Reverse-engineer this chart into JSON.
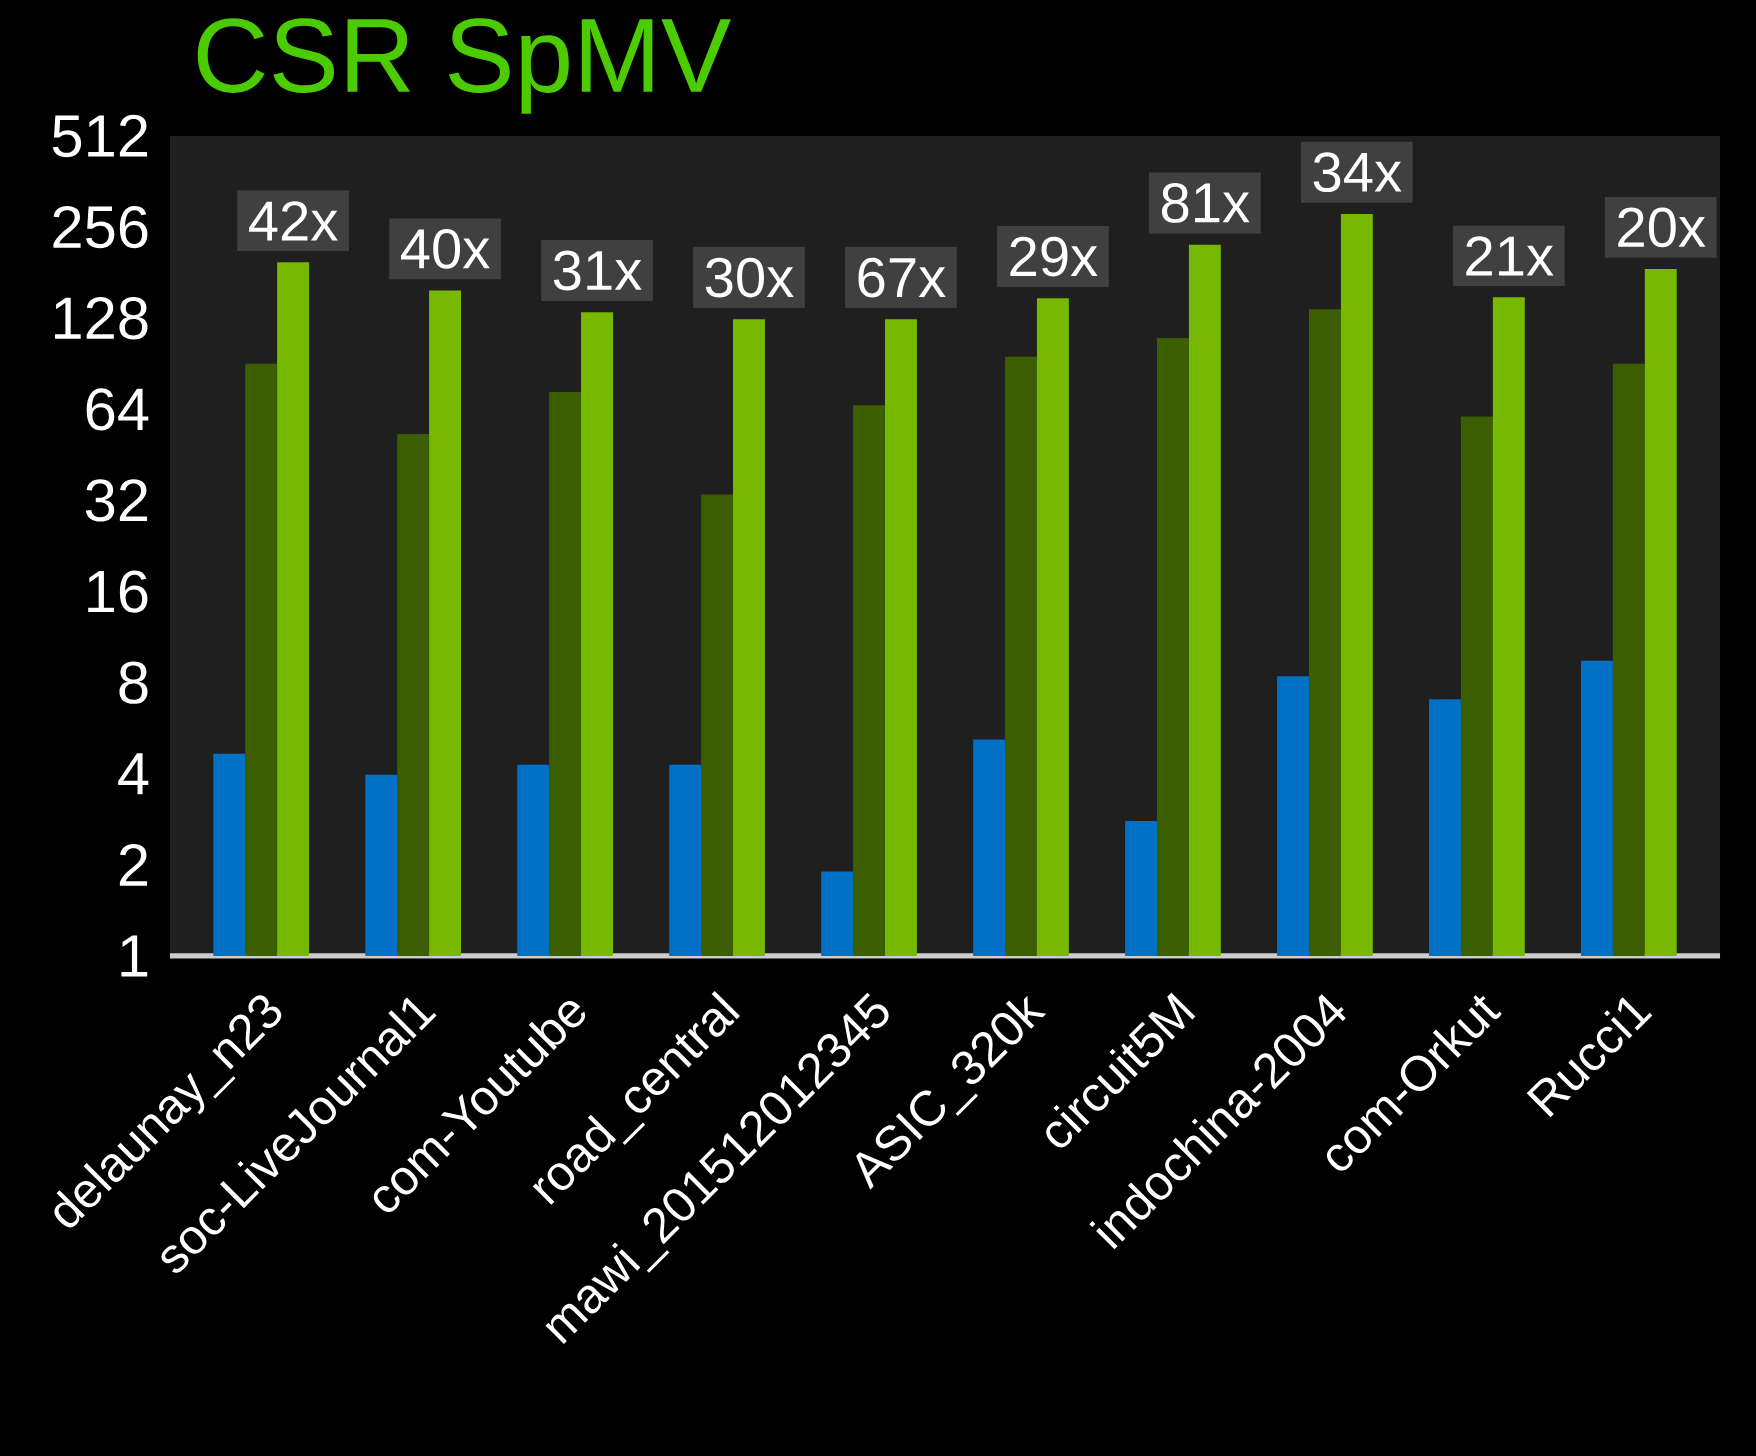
{
  "chart_data": {
    "type": "bar",
    "title": "CSR SpMV",
    "categories": [
      "delaunay_n23",
      "soc-LiveJournal1",
      "com-Youtube",
      "road_central",
      "mawi_201512012345",
      "ASIC_320k",
      "circuit5M",
      "indochina-2004",
      "com-Orkut",
      "Rucci1"
    ],
    "series": [
      {
        "color": "#0071c5",
        "values": [
          4.66,
          3.97,
          4.28,
          4.28,
          1.9,
          5.19,
          2.79,
          8.4,
          7.05,
          9.45
        ]
      },
      {
        "color": "#3b5e00",
        "values": [
          90.5,
          53,
          73,
          33.5,
          66,
          95.5,
          110,
          137,
          60.6,
          90.5
        ]
      },
      {
        "color": "#76b900",
        "values": [
          196,
          158,
          134,
          127,
          127,
          149,
          224,
          283,
          150,
          186
        ]
      }
    ],
    "log": "y",
    "ylim": [
      1,
      512
    ],
    "yticks": [
      1,
      2,
      4,
      8,
      16,
      32,
      64,
      128,
      256,
      512
    ],
    "annotations": [
      "42x",
      "40x",
      "31x",
      "30x",
      "67x",
      "29x",
      "81x",
      "34x",
      "21x",
      "20x"
    ],
    "grid": false
  }
}
